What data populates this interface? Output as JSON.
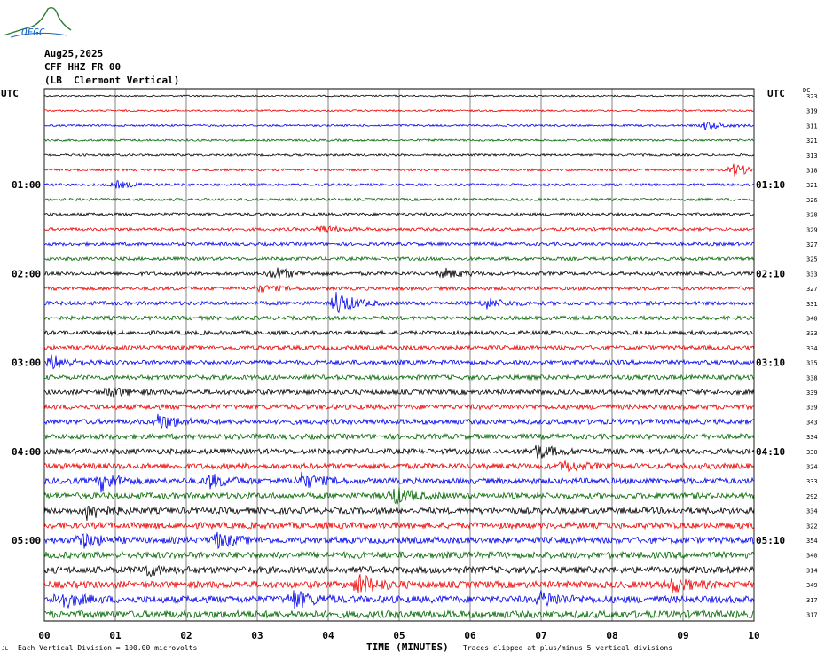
{
  "header": {
    "logo_text": "OFGC",
    "date": "Aug25,2025",
    "station": "CFF HHZ FR 00",
    "location": "(LB  Clermont Vertical)"
  },
  "axis": {
    "left_title": "UTC",
    "right_title": "UTC",
    "dc_title": "DC",
    "xlabel": "TIME (MINUTES)",
    "left_ticks": [
      "01:00",
      "02:00",
      "03:00",
      "04:00",
      "05:00"
    ],
    "right_ticks": [
      "01:10",
      "02:10",
      "03:10",
      "04:10",
      "05:10"
    ]
  },
  "footer": {
    "left_mark": "JL",
    "division_note": "Each Vertical Division =  100.00 microvolts",
    "clip_note": "Traces clipped at plus/minus 5 vertical divisions"
  },
  "colors": {
    "trace_cycle": [
      "#000000",
      "#ee0000",
      "#0000ee",
      "#006600"
    ],
    "grid": "#000000"
  },
  "chart_data": {
    "type": "line",
    "title": "",
    "xlabel": "TIME (MINUTES)",
    "ylabel": "UTC",
    "x_ticks": [
      "00",
      "01",
      "02",
      "03",
      "04",
      "05",
      "06",
      "07",
      "08",
      "09",
      "10"
    ],
    "xlim": [
      0,
      10
    ],
    "grid": true,
    "trace_count": 36,
    "dc_offsets": [
      323,
      319,
      311,
      321,
      313,
      318,
      321,
      326,
      328,
      329,
      327,
      325,
      333,
      327,
      331,
      340,
      333,
      334,
      335,
      338,
      339,
      339,
      343,
      334,
      330,
      324,
      333,
      292,
      334,
      322,
      354,
      340,
      314,
      349,
      317,
      317
    ],
    "events": [
      {
        "trace": 2,
        "minute": 9.3,
        "amplitude": 5
      },
      {
        "trace": 5,
        "minute": 9.7,
        "amplitude": 7
      },
      {
        "trace": 6,
        "minute": 1.0,
        "amplitude": 4
      },
      {
        "trace": 9,
        "minute": 3.9,
        "amplitude": 4
      },
      {
        "trace": 12,
        "minute": 3.2,
        "amplitude": 8
      },
      {
        "trace": 12,
        "minute": 5.6,
        "amplitude": 6
      },
      {
        "trace": 13,
        "minute": 3.0,
        "amplitude": 4
      },
      {
        "trace": 14,
        "minute": 4.1,
        "amplitude": 14
      },
      {
        "trace": 14,
        "minute": 6.2,
        "amplitude": 6
      },
      {
        "trace": 18,
        "minute": 0.1,
        "amplitude": 8
      },
      {
        "trace": 20,
        "minute": 0.9,
        "amplitude": 6
      },
      {
        "trace": 22,
        "minute": 1.6,
        "amplitude": 9
      },
      {
        "trace": 24,
        "minute": 6.9,
        "amplitude": 8
      },
      {
        "trace": 25,
        "minute": 7.3,
        "amplitude": 6
      },
      {
        "trace": 26,
        "minute": 0.8,
        "amplitude": 10
      },
      {
        "trace": 26,
        "minute": 2.3,
        "amplitude": 8
      },
      {
        "trace": 26,
        "minute": 3.6,
        "amplitude": 9
      },
      {
        "trace": 27,
        "minute": 4.9,
        "amplitude": 10
      },
      {
        "trace": 28,
        "minute": 0.6,
        "amplitude": 10
      },
      {
        "trace": 30,
        "minute": 0.5,
        "amplitude": 8
      },
      {
        "trace": 30,
        "minute": 2.4,
        "amplitude": 8
      },
      {
        "trace": 32,
        "minute": 1.4,
        "amplitude": 6
      },
      {
        "trace": 33,
        "minute": 4.4,
        "amplitude": 13
      },
      {
        "trace": 33,
        "minute": 8.8,
        "amplitude": 9
      },
      {
        "trace": 34,
        "minute": 0.2,
        "amplitude": 10
      },
      {
        "trace": 34,
        "minute": 3.5,
        "amplitude": 10
      },
      {
        "trace": 34,
        "minute": 7.0,
        "amplitude": 8
      }
    ]
  }
}
